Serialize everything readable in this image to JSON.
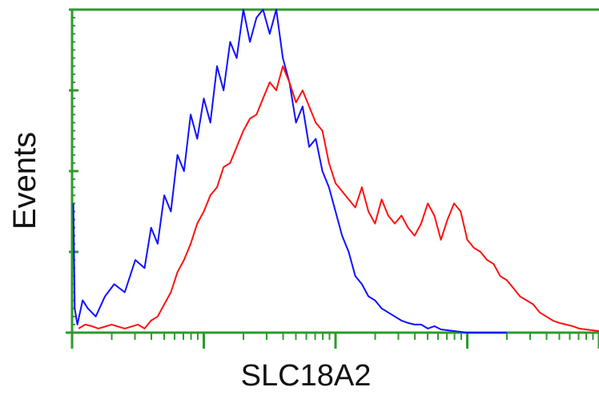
{
  "chart_data": {
    "type": "line",
    "title": "",
    "xlabel": "SLC18A2",
    "ylabel": "Events",
    "xscale": "log",
    "xlim": [
      0,
      4
    ],
    "ylim": [
      0,
      4
    ],
    "x_major_ticks": [
      0,
      1,
      2,
      3,
      4
    ],
    "y_major_ticks": [
      0,
      1,
      2,
      3,
      4
    ],
    "grid": false,
    "legend": "none",
    "colors": {
      "axis": "#2e9a2e",
      "series_1": "#1010ff",
      "series_2": "#ff1010"
    },
    "series": [
      {
        "color": "#1010ff",
        "x": [
          0.01,
          0.02,
          0.04,
          0.08,
          0.12,
          0.18,
          0.25,
          0.32,
          0.4,
          0.48,
          0.55,
          0.6,
          0.65,
          0.7,
          0.75,
          0.8,
          0.85,
          0.9,
          0.95,
          1.0,
          1.05,
          1.1,
          1.15,
          1.2,
          1.25,
          1.3,
          1.35,
          1.4,
          1.45,
          1.5,
          1.55,
          1.6,
          1.65,
          1.7,
          1.75,
          1.8,
          1.85,
          1.9,
          1.95,
          2.0,
          2.05,
          2.1,
          2.15,
          2.2,
          2.25,
          2.3,
          2.35,
          2.4,
          2.45,
          2.5,
          2.55,
          2.6,
          2.65,
          2.7,
          2.75,
          2.8,
          2.85,
          2.9,
          2.95,
          3.0,
          3.05,
          3.1,
          3.15,
          3.2,
          3.25,
          3.3
        ],
        "y": [
          1.6,
          0.3,
          0.1,
          0.4,
          0.3,
          0.2,
          0.45,
          0.6,
          0.5,
          0.9,
          0.8,
          1.3,
          1.1,
          1.7,
          1.5,
          2.2,
          2.0,
          2.7,
          2.4,
          2.9,
          2.6,
          3.3,
          3.0,
          3.6,
          3.4,
          4.0,
          3.6,
          3.9,
          4.0,
          3.7,
          4.0,
          3.4,
          3.1,
          2.6,
          2.8,
          2.3,
          2.4,
          2.0,
          1.8,
          1.5,
          1.2,
          1.0,
          0.7,
          0.6,
          0.45,
          0.4,
          0.3,
          0.25,
          0.2,
          0.15,
          0.12,
          0.1,
          0.1,
          0.05,
          0.08,
          0.04,
          0.03,
          0.02,
          0.01,
          0.0,
          0.0,
          0.0,
          0.0,
          0.0,
          0.0,
          0.0
        ]
      },
      {
        "color": "#ff1010",
        "x": [
          0.05,
          0.1,
          0.15,
          0.2,
          0.3,
          0.4,
          0.5,
          0.55,
          0.6,
          0.65,
          0.7,
          0.75,
          0.8,
          0.85,
          0.9,
          0.95,
          1.0,
          1.05,
          1.1,
          1.15,
          1.2,
          1.25,
          1.3,
          1.35,
          1.4,
          1.45,
          1.5,
          1.55,
          1.6,
          1.65,
          1.7,
          1.75,
          1.8,
          1.85,
          1.9,
          1.95,
          2.0,
          2.05,
          2.1,
          2.15,
          2.2,
          2.25,
          2.3,
          2.35,
          2.4,
          2.45,
          2.5,
          2.55,
          2.6,
          2.65,
          2.7,
          2.75,
          2.8,
          2.85,
          2.9,
          2.95,
          3.0,
          3.05,
          3.1,
          3.15,
          3.2,
          3.25,
          3.3,
          3.35,
          3.4,
          3.45,
          3.5,
          3.55,
          3.6,
          3.65,
          3.7,
          3.75,
          3.8,
          3.85,
          3.9,
          3.95,
          4.0,
          4.05,
          4.1
        ],
        "y": [
          0.05,
          0.1,
          0.08,
          0.05,
          0.1,
          0.05,
          0.1,
          0.05,
          0.15,
          0.2,
          0.35,
          0.5,
          0.75,
          0.9,
          1.1,
          1.35,
          1.5,
          1.7,
          1.8,
          2.05,
          2.1,
          2.3,
          2.5,
          2.65,
          2.7,
          2.9,
          3.1,
          3.0,
          3.3,
          3.1,
          2.85,
          3.0,
          2.8,
          2.6,
          2.5,
          2.1,
          1.85,
          1.75,
          1.65,
          1.55,
          1.8,
          1.5,
          1.35,
          1.65,
          1.45,
          1.35,
          1.45,
          1.3,
          1.2,
          1.35,
          1.6,
          1.45,
          1.15,
          1.4,
          1.6,
          1.5,
          1.15,
          1.05,
          1.0,
          0.9,
          0.85,
          0.7,
          0.65,
          0.55,
          0.45,
          0.4,
          0.35,
          0.25,
          0.2,
          0.15,
          0.12,
          0.1,
          0.08,
          0.05,
          0.04,
          0.03,
          0.02,
          0.0,
          0.0
        ]
      }
    ]
  }
}
